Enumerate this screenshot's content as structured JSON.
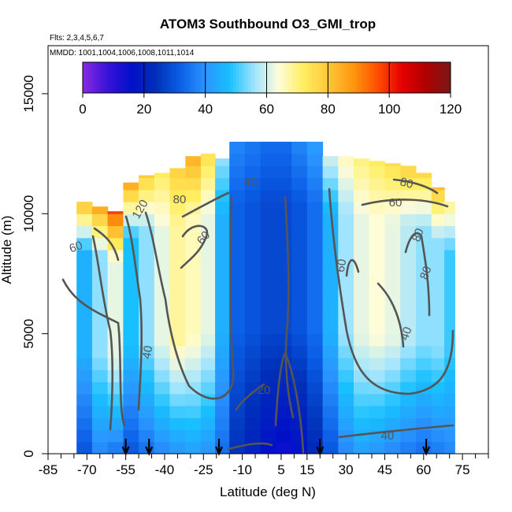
{
  "chart_data": {
    "type": "heatmap",
    "title": "ATOM3 Southbound O3_GMI_trop",
    "subtitle_lines": [
      "Flts: 2,3,4,5,6,7",
      "MMDD: 1001,1004,1006,1008,1011,1014"
    ],
    "xlabel": "Latitude (deg N)",
    "ylabel": "Altitude (m)",
    "xlim": [
      -85,
      85
    ],
    "ylim": [
      0,
      17000
    ],
    "x_ticks": [
      -85,
      -70,
      -55,
      -40,
      -25,
      -10,
      5,
      15,
      30,
      45,
      60,
      75
    ],
    "x_minor_ticks": [
      -80,
      -75,
      -65,
      -60,
      -50,
      -45,
      -35,
      -30,
      -20,
      -15,
      -5,
      0,
      10,
      20,
      25,
      35,
      40,
      50,
      55,
      65,
      70,
      80,
      85
    ],
    "y_ticks": [
      0,
      5000,
      10000,
      15000
    ],
    "colorbar": {
      "min": 0,
      "max": 120,
      "ticks": [
        0,
        20,
        40,
        60,
        80,
        100,
        120
      ],
      "colors": [
        "#8a2be2",
        "#3a12d8",
        "#0010c8",
        "#0030b8",
        "#0c60e8",
        "#2a94ff",
        "#18c0ff",
        "#a0e4ff",
        "#fffcd8",
        "#ffee60",
        "#ffc838",
        "#ff9810",
        "#ff5000",
        "#e60000",
        "#b00000",
        "#7a1818"
      ]
    },
    "contour_labels": [
      "20",
      "40",
      "40",
      "40",
      "40",
      "60",
      "60",
      "60",
      "60",
      "80",
      "80",
      "80",
      "80",
      "120"
    ],
    "flight_markers_lat": [
      -55,
      -46,
      -19,
      20,
      61
    ],
    "columns": [
      {
        "lat": -71,
        "top": 10500,
        "low": 30,
        "mid": 45,
        "high": 82
      },
      {
        "lat": -65,
        "top": 10300,
        "low": 38,
        "mid": 55,
        "high": 85
      },
      {
        "lat": -59,
        "top": 10100,
        "low": 35,
        "mid": 62,
        "high": 95
      },
      {
        "lat": -53,
        "top": 11300,
        "low": 30,
        "mid": 48,
        "high": 85
      },
      {
        "lat": -47,
        "top": 11600,
        "low": 34,
        "mid": 55,
        "high": 78
      },
      {
        "lat": -41,
        "top": 11700,
        "low": 38,
        "mid": 62,
        "high": 72
      },
      {
        "lat": -35,
        "top": 11900,
        "low": 40,
        "mid": 68,
        "high": 78
      },
      {
        "lat": -29,
        "top": 12400,
        "low": 42,
        "mid": 66,
        "high": 84
      },
      {
        "lat": -23,
        "top": 12500,
        "low": 40,
        "mid": 62,
        "high": 75
      },
      {
        "lat": -18,
        "top": 12300,
        "low": 34,
        "mid": 45,
        "high": 55
      },
      {
        "lat": -12,
        "top": 13000,
        "low": 24,
        "mid": 32,
        "high": 38
      },
      {
        "lat": -6,
        "top": 13000,
        "low": 20,
        "mid": 30,
        "high": 36
      },
      {
        "lat": 0,
        "top": 13000,
        "low": 16,
        "mid": 28,
        "high": 34
      },
      {
        "lat": 6,
        "top": 13000,
        "low": 14,
        "mid": 28,
        "high": 34
      },
      {
        "lat": 12,
        "top": 13000,
        "low": 16,
        "mid": 30,
        "high": 38
      },
      {
        "lat": 18,
        "top": 13000,
        "low": 22,
        "mid": 34,
        "high": 42
      },
      {
        "lat": 24,
        "top": 12400,
        "low": 30,
        "mid": 45,
        "high": 60
      },
      {
        "lat": 30,
        "top": 12400,
        "low": 38,
        "mid": 56,
        "high": 66
      },
      {
        "lat": 36,
        "top": 12300,
        "low": 42,
        "mid": 62,
        "high": 70
      },
      {
        "lat": 42,
        "top": 12200,
        "low": 40,
        "mid": 64,
        "high": 72
      },
      {
        "lat": 48,
        "top": 12100,
        "low": 38,
        "mid": 62,
        "high": 75
      },
      {
        "lat": 54,
        "top": 12000,
        "low": 36,
        "mid": 58,
        "high": 78
      },
      {
        "lat": 60,
        "top": 11700,
        "low": 34,
        "mid": 55,
        "high": 76
      },
      {
        "lat": 66,
        "top": 11100,
        "low": 36,
        "mid": 55,
        "high": 80
      },
      {
        "lat": 70,
        "top": 10500,
        "low": 38,
        "mid": 50,
        "high": 70
      }
    ],
    "grid": false,
    "legend": "colorbar top"
  }
}
